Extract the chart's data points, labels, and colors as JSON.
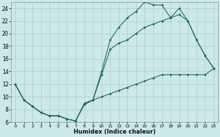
{
  "xlabel": "Humidex (Indice chaleur)",
  "bg_color": "#cce8e8",
  "line_color": "#1a6b5a",
  "grid_color": "#aacccc",
  "xlim": [
    -0.5,
    23.5
  ],
  "ylim": [
    6,
    25
  ],
  "xticks": [
    0,
    1,
    2,
    3,
    4,
    5,
    6,
    7,
    8,
    9,
    10,
    11,
    12,
    13,
    14,
    15,
    16,
    17,
    18,
    19,
    20,
    21,
    22,
    23
  ],
  "yticks": [
    6,
    8,
    10,
    12,
    14,
    16,
    18,
    20,
    22,
    24
  ],
  "line1_x": [
    0,
    1,
    2,
    3,
    4,
    5,
    6,
    7,
    8,
    9,
    10,
    11,
    12,
    13,
    14,
    15,
    16,
    17,
    18,
    19,
    20,
    21,
    22,
    23
  ],
  "line1_y": [
    12,
    9.5,
    8.5,
    7.5,
    7,
    7,
    6.5,
    6.2,
    8.8,
    9.5,
    14,
    19,
    21,
    22.5,
    23.5,
    25,
    24.5,
    24.5,
    22.5,
    24,
    22,
    19,
    16.5,
    14.5
  ],
  "line2_x": [
    0,
    1,
    2,
    3,
    4,
    5,
    6,
    7,
    8,
    9,
    10,
    11,
    12,
    13,
    14,
    15,
    16,
    17,
    18,
    19,
    20,
    21,
    22,
    23
  ],
  "line2_y": [
    12,
    9.5,
    8.5,
    7.5,
    7,
    7,
    6.5,
    6.2,
    8.8,
    9.5,
    10,
    10.5,
    11,
    11.5,
    12,
    12.5,
    13,
    13.5,
    13.5,
    13.5,
    13.5,
    13.5,
    13.5,
    14.5
  ],
  "line3_x": [
    0,
    1,
    2,
    3,
    4,
    5,
    6,
    7,
    8,
    9,
    10,
    11,
    12,
    13,
    14,
    15,
    16,
    17,
    18,
    19,
    20,
    21,
    22,
    23
  ],
  "line3_y": [
    12,
    9.5,
    8.5,
    7.5,
    7,
    7,
    6.5,
    6.2,
    9,
    9.5,
    13.5,
    17.5,
    18.5,
    19,
    20,
    21,
    21.5,
    22,
    22.5,
    23,
    22,
    19,
    16.5,
    14.5
  ]
}
